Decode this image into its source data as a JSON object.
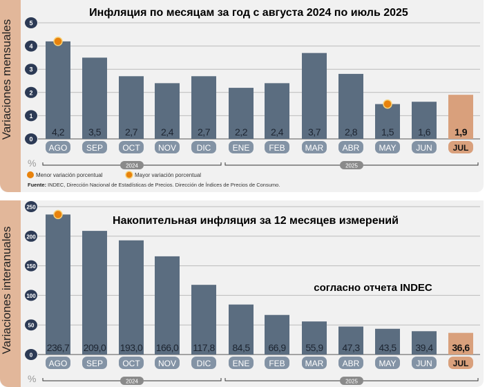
{
  "chart_data": [
    {
      "type": "bar",
      "title": "Инфляция по месяцам за год с августа 2024 по июль 2025",
      "ylabel": "Variaciones mensuales",
      "unit": "%",
      "ylim": [
        0,
        5
      ],
      "yticks": [
        0,
        1,
        2,
        3,
        4,
        5
      ],
      "categories": [
        "AGO",
        "SEP",
        "OCT",
        "NOV",
        "DIC",
        "ENE",
        "FEB",
        "MAR",
        "ABR",
        "MAY",
        "JUN",
        "JUL"
      ],
      "values": [
        4.2,
        3.5,
        2.7,
        2.4,
        2.7,
        2.2,
        2.4,
        3.7,
        2.8,
        1.5,
        1.6,
        1.9
      ],
      "value_labels": [
        "4,2",
        "3,5",
        "2,7",
        "2,4",
        "2,7",
        "2,2",
        "2,4",
        "3,7",
        "2,8",
        "1,5",
        "1,6",
        "1,9"
      ],
      "years": [
        "2024",
        "2025"
      ],
      "highlight_index": 11,
      "max_marker_index": 0,
      "min_marker_index": 9,
      "legend": [
        "Menor variación porcentual",
        "Mayor variación porcentual"
      ],
      "source_label": "Fuente:",
      "source": "INDEC, Dirección Nacional de Estadísticas de Precios. Dirección de Índices de Precios de Consumo."
    },
    {
      "type": "bar",
      "title": "Накопительная инфляция за 12 месяцев измерений",
      "annotation": "согласно отчета INDEC",
      "ylabel": "Variaciones interanuales",
      "unit": "%",
      "ylim": [
        0,
        250
      ],
      "yticks": [
        0,
        50,
        100,
        150,
        200,
        250
      ],
      "categories": [
        "AGO",
        "SEP",
        "OCT",
        "NOV",
        "DIC",
        "ENE",
        "FEB",
        "MAR",
        "ABR",
        "MAY",
        "JUN",
        "JUL"
      ],
      "values": [
        236.7,
        209.0,
        193.0,
        166.0,
        117.8,
        84.5,
        66.9,
        55.9,
        47.3,
        43.5,
        39.4,
        36.6
      ],
      "value_labels": [
        "236,7",
        "209,0",
        "193,0",
        "166,0",
        "117,8",
        "84,5",
        "66,9",
        "55,9",
        "47,3",
        "43,5",
        "39,4",
        "36,6"
      ],
      "years": [
        "2024",
        "2025"
      ],
      "highlight_index": 11,
      "max_marker_index": 0
    }
  ],
  "colors": {
    "bar": "#5b6d80",
    "highlight": "#d9a07c",
    "pill": "#8393a5",
    "marker": "#e8820c",
    "strip": "#e2b79a"
  }
}
